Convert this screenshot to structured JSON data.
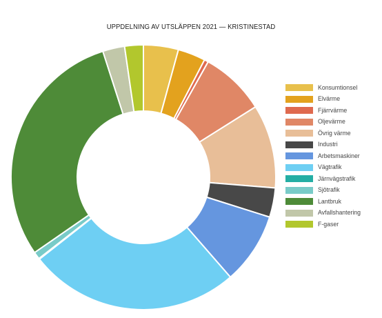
{
  "chart_data": {
    "type": "pie",
    "title": "UPPDELNING AV UTSLÄPPEN 2021 — KRISTINESTAD",
    "legend_position": "right",
    "categories": [
      "Konsumtionsel",
      "Elvärme",
      "Fjärrvärme",
      "Oljevärme",
      "Övrig värme",
      "Industri",
      "Arbetsmaskiner",
      "Vägtrafik",
      "Järnvägstrafik",
      "Sjötrafik",
      "Lantbruk",
      "Avfallshantering",
      "F-gaser"
    ],
    "values": [
      4.3,
      3.4,
      0.5,
      8.0,
      10.3,
      3.6,
      8.8,
      26.0,
      0.1,
      0.9,
      29.9,
      2.7,
      2.3
    ],
    "colors": [
      "#e8c04c",
      "#e3a21e",
      "#df6a4f",
      "#e08766",
      "#e8be98",
      "#484848",
      "#6596df",
      "#6ecff3",
      "#24aea4",
      "#79cbc8",
      "#4e8b38",
      "#c1c7a9",
      "#b2c72d"
    ]
  }
}
